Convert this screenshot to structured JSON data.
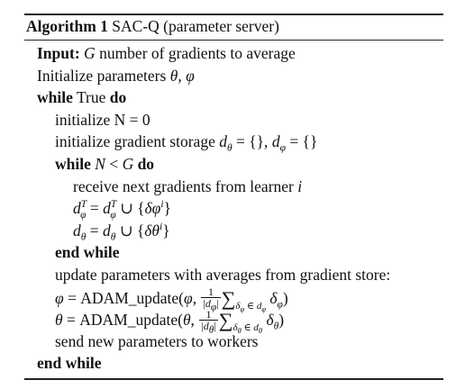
{
  "algorithm": {
    "label": "Algorithm 1",
    "title": "SAC-Q (parameter server)"
  },
  "keywords": {
    "input": "Input:",
    "while": "while",
    "do": "do",
    "end_while": "end while"
  },
  "lines": {
    "input_text": "G number of gradients to average",
    "init_params": "Initialize parameters θ, φ",
    "while_cond": "True",
    "init_n": "initialize N = 0",
    "init_storage": "initialize gradient storage d_θ = {}, d_φ = {}",
    "inner_while_cond": "N < G",
    "receive": "receive next gradients from learner i",
    "store_phi": "d_φ^T = d_φ^T ∪ {δφ^i}",
    "store_theta": "d_θ = d_θ ∪ {δθ^i}",
    "inner_end": "end while",
    "update_text": "update parameters with averages from gradient store:",
    "update_phi": "φ = ADAM_update(φ, 1/|d_φ| Σ_{δ_φ ∈ d_φ} δ_φ)",
    "update_theta": "θ = ADAM_update(θ, 1/|d_θ| Σ_{δ_θ ∈ d_θ} δ_θ)",
    "send": "send new parameters to workers",
    "outer_end": "end while"
  }
}
